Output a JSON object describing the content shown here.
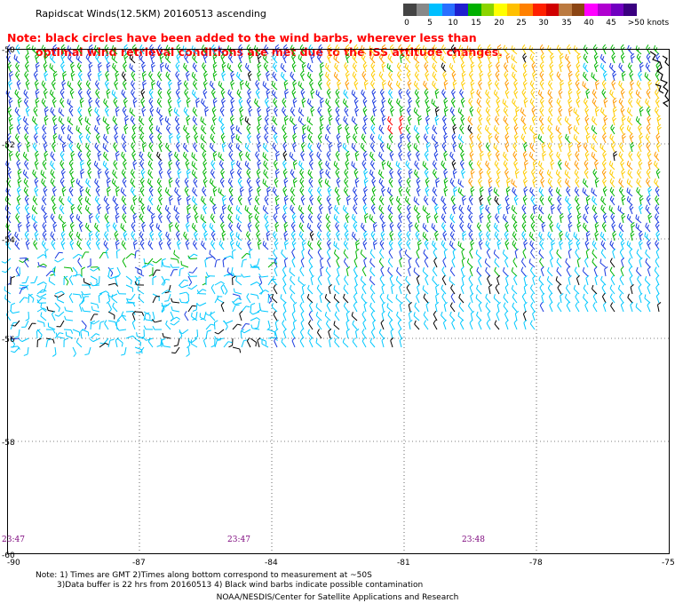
{
  "title": "Rapidscat Winds(12.5KM) 20160513 ascending",
  "note_lines": [
    "Note: black circles have been added to the wind barbs, wherever less than",
    "optimal wind retrieval conditions are met due to the ISS attitude changes."
  ],
  "legend": {
    "ticks": [
      "0",
      "5",
      "10",
      "15",
      "20",
      "25",
      "30",
      "35",
      "40",
      "45",
      ">50 knots"
    ],
    "colors": [
      "#444444",
      "#888888",
      "#00bfff",
      "#2a6fff",
      "#2020cf",
      "#00b000",
      "#8bd400",
      "#ffff00",
      "#ffc000",
      "#ff8000",
      "#ff2000",
      "#d00000",
      "#bb7a40",
      "#8b4513",
      "#ff00ff",
      "#b000d0",
      "#7000c0",
      "#3a0080"
    ]
  },
  "map": {
    "x_ticks": [
      "-90",
      "-87",
      "-84",
      "-81",
      "-78",
      "-75"
    ],
    "y_ticks": [
      "-50",
      "-52",
      "-54",
      "-56",
      "-58",
      "-60"
    ],
    "time_labels": [
      "23:47",
      "23:47",
      "23:48"
    ],
    "wind_field_colors": {
      "calm": "#000000",
      "light": "#00c8ff",
      "moderate": "#1a3ae0",
      "fresh": "#00b400",
      "strong": "#ffcc00",
      "gale": "#ff9900",
      "storm": "#ff0000"
    }
  },
  "footnotes": [
    "Note: 1) Times are GMT 2)Times along bottom correspond to measurement at ~50S",
    "3)Data buffer is 22 hrs from 20160513 4) Black wind barbs indicate possible contamination"
  ],
  "credit": "NOAA/NESDIS/Center for Satellite Applications and Research"
}
